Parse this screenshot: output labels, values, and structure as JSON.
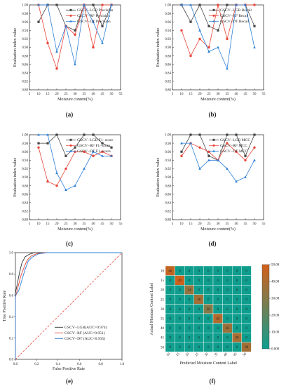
{
  "panels": [
    {
      "id": "a",
      "caption": "(a)",
      "xlabel": "Moisture content(%)",
      "ylabel": "Evaluation index value",
      "xlim": [
        5,
        55
      ],
      "ylim": [
        0.8,
        1.0
      ],
      "xticks": [
        5,
        10,
        15,
        20,
        25,
        30,
        35,
        40,
        45,
        50,
        55
      ],
      "yticks": [
        "0.80",
        "0.82",
        "0.84",
        "0.86",
        "0.88",
        "0.90",
        "0.92",
        "0.94",
        "0.96",
        "0.98",
        "1.00"
      ],
      "x": [
        10,
        15,
        20,
        25,
        30,
        35,
        40,
        45,
        50
      ],
      "series": [
        {
          "name": "GSCV−LGB  Precision",
          "color": "#444444",
          "marker": "square",
          "values": [
            0.96,
            1.0,
            1.0,
            0.95,
            0.94,
            1.0,
            1.0,
            0.95,
            1.0
          ]
        },
        {
          "name": "GSCV−RF    Precision",
          "color": "#e8463a",
          "marker": "circle",
          "values": [
            1.0,
            0.91,
            0.85,
            0.95,
            0.93,
            1.0,
            0.9,
            1.0,
            1.0
          ]
        },
        {
          "name": "GSCV−DT    Precision",
          "color": "#2e7fd6",
          "marker": "triangle",
          "values": [
            1.0,
            1.0,
            0.89,
            0.95,
            0.86,
            1.0,
            0.96,
            0.91,
            1.0
          ]
        }
      ]
    },
    {
      "id": "b",
      "caption": "(b)",
      "xlabel": "Moisture content(%)",
      "ylabel": "Evaluation index value",
      "xlim": [
        5,
        55
      ],
      "ylim": [
        0.8,
        1.0
      ],
      "xticks": [
        5,
        10,
        15,
        20,
        25,
        30,
        35,
        40,
        45,
        50,
        55
      ],
      "yticks": [
        "0.80",
        "0.82",
        "0.84",
        "0.86",
        "0.88",
        "0.90",
        "0.92",
        "0.94",
        "0.96",
        "0.98",
        "1.00"
      ],
      "x": [
        10,
        15,
        20,
        25,
        30,
        35,
        40,
        45,
        50
      ],
      "series": [
        {
          "name": "GSCV−LGB  Recall",
          "color": "#444444",
          "marker": "square",
          "values": [
            1.0,
            0.96,
            1.0,
            0.95,
            0.94,
            1.0,
            1.0,
            1.0,
            0.95
          ]
        },
        {
          "name": "GSCV−RF    Recall",
          "color": "#e8463a",
          "marker": "circle",
          "values": [
            0.94,
            0.88,
            0.92,
            0.9,
            1.0,
            0.92,
            1.0,
            1.0,
            1.0
          ]
        },
        {
          "name": "GSCV−DT    Recall",
          "color": "#2e7fd6",
          "marker": "triangle",
          "values": [
            1.0,
            1.0,
            0.94,
            0.89,
            0.9,
            0.85,
            1.0,
            1.0,
            0.9
          ]
        }
      ]
    },
    {
      "id": "c",
      "caption": "(c)",
      "xlabel": "Moisture content(%)",
      "ylabel": "Evaluation index value",
      "xlim": [
        5,
        55
      ],
      "ylim": [
        0.8,
        1.0
      ],
      "xticks": [
        5,
        10,
        15,
        20,
        25,
        30,
        35,
        40,
        45,
        50,
        55
      ],
      "yticks": [
        "0.80",
        "0.82",
        "0.84",
        "0.86",
        "0.88",
        "0.90",
        "0.92",
        "0.94",
        "0.96",
        "0.98",
        "1.00"
      ],
      "x": [
        10,
        15,
        20,
        25,
        30,
        35,
        40,
        45,
        50
      ],
      "series": [
        {
          "name": "GSCV−LGB  F1−score",
          "color": "#444444",
          "marker": "square",
          "values": [
            0.98,
            0.98,
            1.0,
            0.95,
            0.97,
            1.0,
            1.0,
            0.98,
            0.97
          ]
        },
        {
          "name": "GSCV−RF    F1−score",
          "color": "#e8463a",
          "marker": "circle",
          "values": [
            0.97,
            0.89,
            0.88,
            0.92,
            0.96,
            0.96,
            0.95,
            0.96,
            0.95
          ]
        },
        {
          "name": "GSCV−DT    F1−score",
          "color": "#2e7fd6",
          "marker": "triangle",
          "values": [
            1.0,
            1.0,
            0.91,
            0.87,
            0.88,
            0.92,
            0.96,
            0.95,
            0.95
          ]
        }
      ]
    },
    {
      "id": "d",
      "caption": "(d)",
      "xlabel": "Moisture content(%)",
      "ylabel": "Evaluation index value",
      "xlim": [
        5,
        55
      ],
      "ylim": [
        0.8,
        1.0
      ],
      "xticks": [
        5,
        10,
        15,
        20,
        25,
        30,
        35,
        40,
        45,
        50,
        55
      ],
      "yticks": [
        "0.80",
        "0.82",
        "0.84",
        "0.86",
        "0.88",
        "0.90",
        "0.92",
        "0.94",
        "0.96",
        "0.98",
        "1.00"
      ],
      "x": [
        10,
        15,
        20,
        25,
        30,
        35,
        40,
        45,
        50
      ],
      "series": [
        {
          "name": "GSCV−LGB  MCC",
          "color": "#444444",
          "marker": "square",
          "values": [
            0.96,
            1.0,
            1.0,
            0.95,
            0.94,
            1.0,
            1.0,
            0.95,
            1.0
          ]
        },
        {
          "name": "GSCV−RF    MCC",
          "color": "#e8463a",
          "marker": "circle",
          "values": [
            0.95,
            0.98,
            0.97,
            0.96,
            0.94,
            0.98,
            0.96,
            0.94,
            0.97
          ]
        },
        {
          "name": "GSCV−DT    MCC",
          "color": "#2e7fd6",
          "marker": "triangle",
          "values": [
            0.98,
            0.98,
            0.92,
            0.94,
            0.94,
            0.92,
            0.89,
            0.9,
            0.94
          ]
        }
      ]
    }
  ],
  "roc": {
    "caption": "(e)",
    "xlabel": "False Positive Rate",
    "ylabel": "True Positive Rate",
    "xlim": [
      0.0,
      1.0
    ],
    "ylim": [
      0.0,
      1.0
    ],
    "ticks": [
      "0.0",
      "0.2",
      "0.4",
      "0.6",
      "0.8",
      "1.0"
    ],
    "diagonal_color": "#e8463a",
    "series": [
      {
        "name": "GSCV−LGB(AUC=0.974)",
        "color": "#333333",
        "fpr": [
          0,
          0,
          0.02,
          0.04,
          0.06,
          0.09,
          0.13,
          0.18,
          0.25,
          1.0
        ],
        "tpr": [
          0,
          0.62,
          0.72,
          0.82,
          0.9,
          0.96,
          0.985,
          1.0,
          1.0,
          1.0
        ]
      },
      {
        "name": "GSCV−RF    (AUC=0.951)",
        "color": "#e8463a",
        "fpr": [
          0,
          0,
          0.02,
          0.05,
          0.08,
          0.11,
          0.15,
          0.2,
          0.28,
          1.0
        ],
        "tpr": [
          0,
          0.58,
          0.66,
          0.78,
          0.86,
          0.93,
          0.97,
          0.99,
          1.0,
          1.0
        ]
      },
      {
        "name": "GSCV−DT    (AUC=0.935)",
        "color": "#2e7fd6",
        "fpr": [
          0,
          0,
          0.03,
          0.06,
          0.09,
          0.12,
          0.16,
          0.22,
          0.3,
          1.0
        ],
        "tpr": [
          0,
          0.6,
          0.64,
          0.74,
          0.84,
          0.92,
          0.96,
          0.99,
          1.0,
          1.0
        ]
      }
    ]
  },
  "confusion": {
    "caption": "(f)",
    "xlabel": "Predicted Moisture Content Label",
    "ylabel": "Actual Moisture Content Label",
    "labels": [
      "10",
      "15",
      "20",
      "25",
      "30",
      "35",
      "40",
      "45",
      "50"
    ],
    "colorbar_ticks": [
      "0.000",
      "10.00",
      "20.00",
      "30.00",
      "40.00",
      "50.00"
    ],
    "vmax": 50,
    "low_color": "#0f9e8e",
    "high_color": "#d2601a",
    "matrix": [
      [
        46,
        0,
        0,
        0,
        0,
        0,
        0,
        0,
        0
      ],
      [
        0,
        49,
        0,
        0,
        0,
        0,
        0,
        0,
        0
      ],
      [
        0,
        0,
        34,
        0,
        0,
        0,
        0,
        0,
        0
      ],
      [
        0,
        0,
        0,
        38,
        0,
        0,
        0,
        0,
        0
      ],
      [
        0,
        0,
        0,
        0,
        30,
        0,
        0,
        0,
        0
      ],
      [
        0,
        0,
        0,
        0,
        0,
        42,
        0,
        0,
        0
      ],
      [
        0,
        0,
        0,
        0,
        0,
        0,
        36,
        0,
        0
      ],
      [
        0,
        0,
        0,
        0,
        0,
        0,
        0,
        39,
        0
      ],
      [
        0,
        0,
        0,
        0,
        0,
        0,
        0,
        0,
        38
      ]
    ]
  },
  "chart_data": [
    {
      "type": "line",
      "title": "",
      "xlabel": "Moisture content(%)",
      "ylabel": "Evaluation index value",
      "ylim": [
        0.8,
        1.0
      ],
      "x": [
        10,
        15,
        20,
        25,
        30,
        35,
        40,
        45,
        50
      ],
      "series": [
        {
          "name": "GSCV−LGB Precision",
          "values": [
            0.96,
            1.0,
            1.0,
            0.95,
            0.94,
            1.0,
            1.0,
            0.95,
            1.0
          ]
        },
        {
          "name": "GSCV−RF Precision",
          "values": [
            1.0,
            0.91,
            0.85,
            0.95,
            0.93,
            1.0,
            0.9,
            1.0,
            1.0
          ]
        },
        {
          "name": "GSCV−DT Precision",
          "values": [
            1.0,
            1.0,
            0.89,
            0.95,
            0.86,
            1.0,
            0.96,
            0.91,
            1.0
          ]
        }
      ]
    },
    {
      "type": "line",
      "title": "",
      "xlabel": "Moisture content(%)",
      "ylabel": "Evaluation index value",
      "ylim": [
        0.8,
        1.0
      ],
      "x": [
        10,
        15,
        20,
        25,
        30,
        35,
        40,
        45,
        50
      ],
      "series": [
        {
          "name": "GSCV−LGB Recall",
          "values": [
            1.0,
            0.96,
            1.0,
            0.95,
            0.94,
            1.0,
            1.0,
            1.0,
            0.95
          ]
        },
        {
          "name": "GSCV−RF Recall",
          "values": [
            0.94,
            0.88,
            0.92,
            0.9,
            1.0,
            0.92,
            1.0,
            1.0,
            1.0
          ]
        },
        {
          "name": "GSCV−DT Recall",
          "values": [
            1.0,
            1.0,
            0.94,
            0.89,
            0.9,
            0.85,
            1.0,
            1.0,
            0.9
          ]
        }
      ]
    },
    {
      "type": "line",
      "title": "",
      "xlabel": "Moisture content(%)",
      "ylabel": "Evaluation index value",
      "ylim": [
        0.8,
        1.0
      ],
      "x": [
        10,
        15,
        20,
        25,
        30,
        35,
        40,
        45,
        50
      ],
      "series": [
        {
          "name": "GSCV−LGB F1−score",
          "values": [
            0.98,
            0.98,
            1.0,
            0.95,
            0.97,
            1.0,
            1.0,
            0.98,
            0.97
          ]
        },
        {
          "name": "GSCV−RF F1−score",
          "values": [
            0.97,
            0.89,
            0.88,
            0.92,
            0.96,
            0.96,
            0.95,
            0.96,
            0.95
          ]
        },
        {
          "name": "GSCV−DT F1−score",
          "values": [
            1.0,
            1.0,
            0.91,
            0.87,
            0.88,
            0.92,
            0.96,
            0.95,
            0.95
          ]
        }
      ]
    },
    {
      "type": "line",
      "title": "",
      "xlabel": "Moisture content(%)",
      "ylabel": "Evaluation index value",
      "ylim": [
        0.8,
        1.0
      ],
      "x": [
        10,
        15,
        20,
        25,
        30,
        35,
        40,
        45,
        50
      ],
      "series": [
        {
          "name": "GSCV−LGB MCC",
          "values": [
            0.96,
            1.0,
            1.0,
            0.95,
            0.94,
            1.0,
            1.0,
            0.95,
            1.0
          ]
        },
        {
          "name": "GSCV−RF MCC",
          "values": [
            0.95,
            0.98,
            0.97,
            0.96,
            0.94,
            0.98,
            0.96,
            0.94,
            0.97
          ]
        },
        {
          "name": "GSCV−DT MCC",
          "values": [
            0.98,
            0.98,
            0.92,
            0.94,
            0.94,
            0.92,
            0.89,
            0.9,
            0.94
          ]
        }
      ]
    },
    {
      "type": "line",
      "title": "",
      "xlabel": "False Positive Rate",
      "ylabel": "True Positive Rate",
      "xlim": [
        0,
        1
      ],
      "ylim": [
        0,
        1
      ],
      "series": [
        {
          "name": "GSCV−LGB(AUC=0.974)",
          "x": [
            0,
            0,
            0.02,
            0.04,
            0.06,
            0.09,
            0.13,
            0.18,
            0.25,
            1.0
          ],
          "values": [
            0,
            0.62,
            0.72,
            0.82,
            0.9,
            0.96,
            0.985,
            1.0,
            1.0,
            1.0
          ]
        },
        {
          "name": "GSCV−RF (AUC=0.951)",
          "x": [
            0,
            0,
            0.02,
            0.05,
            0.08,
            0.11,
            0.15,
            0.2,
            0.28,
            1.0
          ],
          "values": [
            0,
            0.58,
            0.66,
            0.78,
            0.86,
            0.93,
            0.97,
            0.99,
            1.0,
            1.0
          ]
        },
        {
          "name": "GSCV−DT (AUC=0.935)",
          "x": [
            0,
            0,
            0.03,
            0.06,
            0.09,
            0.12,
            0.16,
            0.22,
            0.3,
            1.0
          ],
          "values": [
            0,
            0.6,
            0.64,
            0.74,
            0.84,
            0.92,
            0.96,
            0.99,
            1.0,
            1.0
          ]
        }
      ]
    },
    {
      "type": "heatmap",
      "title": "",
      "xlabel": "Predicted Moisture Content Label",
      "ylabel": "Actual Moisture Content Label",
      "categories": [
        "10",
        "15",
        "20",
        "25",
        "30",
        "35",
        "40",
        "45",
        "50"
      ],
      "values": [
        [
          46,
          0,
          0,
          0,
          0,
          0,
          0,
          0,
          0
        ],
        [
          0,
          49,
          0,
          0,
          0,
          0,
          0,
          0,
          0
        ],
        [
          0,
          0,
          34,
          0,
          0,
          0,
          0,
          0,
          0
        ],
        [
          0,
          0,
          0,
          38,
          0,
          0,
          0,
          0,
          0
        ],
        [
          0,
          0,
          0,
          0,
          30,
          0,
          0,
          0,
          0
        ],
        [
          0,
          0,
          0,
          0,
          0,
          42,
          0,
          0,
          0
        ],
        [
          0,
          0,
          0,
          0,
          0,
          0,
          36,
          0,
          0
        ],
        [
          0,
          0,
          0,
          0,
          0,
          0,
          0,
          39,
          0
        ],
        [
          0,
          0,
          0,
          0,
          0,
          0,
          0,
          0,
          38
        ]
      ]
    }
  ]
}
